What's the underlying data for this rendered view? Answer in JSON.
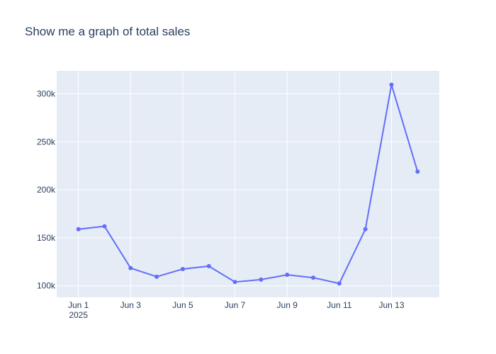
{
  "chart_data": {
    "type": "line",
    "title": "Show me a graph of total sales",
    "xlabel": "",
    "ylabel": "",
    "x": [
      "2025-06-01",
      "2025-06-02",
      "2025-06-03",
      "2025-06-04",
      "2025-06-05",
      "2025-06-06",
      "2025-06-07",
      "2025-06-08",
      "2025-06-09",
      "2025-06-10",
      "2025-06-11",
      "2025-06-12",
      "2025-06-13",
      "2025-06-14"
    ],
    "series": [
      {
        "values": [
          159000,
          162000,
          118500,
          109500,
          117500,
          120500,
          104000,
          106500,
          111500,
          108500,
          102500,
          159000,
          309500,
          219000
        ]
      }
    ],
    "x_ticks": [
      {
        "date": "2025-06-01",
        "label": "Jun 1",
        "sublabel": "2025"
      },
      {
        "date": "2025-06-03",
        "label": "Jun 3"
      },
      {
        "date": "2025-06-05",
        "label": "Jun 5"
      },
      {
        "date": "2025-06-07",
        "label": "Jun 7"
      },
      {
        "date": "2025-06-09",
        "label": "Jun 9"
      },
      {
        "date": "2025-06-11",
        "label": "Jun 11"
      },
      {
        "date": "2025-06-13",
        "label": "Jun 13"
      }
    ],
    "y_ticks": [
      {
        "value": 100000,
        "label": "100k"
      },
      {
        "value": 150000,
        "label": "150k"
      },
      {
        "value": 200000,
        "label": "200k"
      },
      {
        "value": 250000,
        "label": "250k"
      },
      {
        "value": 300000,
        "label": "300k"
      }
    ],
    "xlim": [
      "2025-05-31T04:00",
      "2025-06-14T20:00"
    ],
    "ylim": [
      88000,
      324000
    ],
    "grid": true,
    "colors": {
      "line": "#636efa",
      "plot_bg": "#e5ecf6",
      "grid": "#ffffff",
      "text": "#2a3f5f"
    }
  }
}
